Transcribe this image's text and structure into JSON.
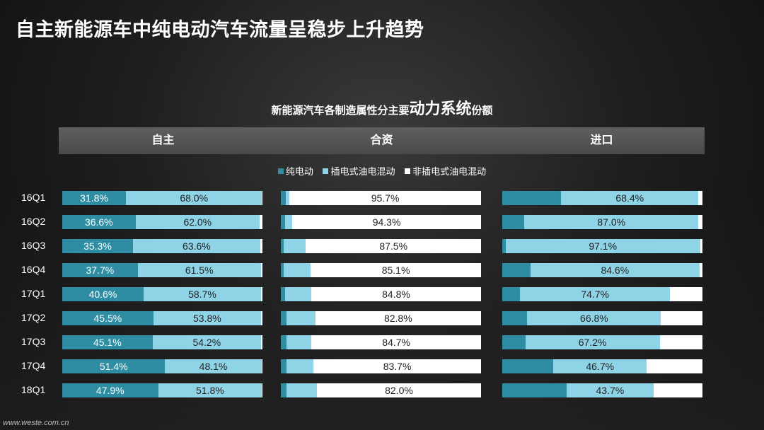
{
  "title": "自主新能源车中纯电动汽车流量呈稳步上升趋势",
  "subtitle_prefix": "新能源汽车各制造属性分主要",
  "subtitle_emph": "动力系统",
  "subtitle_suffix": "份额",
  "watermark": "www.weste.com.cn",
  "colors": {
    "bev": "#2f8da3",
    "phev": "#8fd3e6",
    "hev": "#ffffff",
    "header_bar": "#555555"
  },
  "chart_data": {
    "type": "bar",
    "stacked": true,
    "orientation": "horizontal",
    "categories": [
      "16Q1",
      "16Q2",
      "16Q3",
      "16Q4",
      "17Q1",
      "17Q2",
      "17Q3",
      "17Q4",
      "18Q1"
    ],
    "series_names": [
      "纯电动",
      "插电式油电混动",
      "非插电式油电混动"
    ],
    "groups": [
      {
        "name": "自主",
        "bev": [
          31.8,
          36.6,
          35.3,
          37.7,
          40.6,
          45.5,
          45.1,
          51.4,
          47.9
        ],
        "phev": [
          68.0,
          62.0,
          63.6,
          61.5,
          58.7,
          53.8,
          54.2,
          48.1,
          51.8
        ],
        "hev": [
          0.2,
          1.4,
          1.1,
          0.8,
          0.7,
          0.7,
          0.7,
          0.5,
          0.3
        ],
        "labeled": [
          "bev",
          "phev"
        ],
        "bev_labels": [
          "31.8%",
          "36.6%",
          "35.3%",
          "37.7%",
          "40.6%",
          "45.5%",
          "45.1%",
          "51.4%",
          "47.9%"
        ],
        "phev_labels": [
          "68.0%",
          "62.0%",
          "63.6%",
          "61.5%",
          "58.7%",
          "53.8%",
          "54.2%",
          "48.1%",
          "51.8%"
        ]
      },
      {
        "name": "合资",
        "bev": [
          2.5,
          2.0,
          1.5,
          1.5,
          2.0,
          3.0,
          3.0,
          3.0,
          3.0
        ],
        "phev": [
          1.8,
          3.7,
          11.0,
          13.4,
          13.2,
          14.2,
          12.3,
          13.3,
          15.0
        ],
        "hev": [
          95.7,
          94.3,
          87.5,
          85.1,
          84.8,
          82.8,
          84.7,
          83.7,
          82.0
        ],
        "labeled": [
          "hev"
        ],
        "hev_labels": [
          "95.7%",
          "94.3%",
          "87.5%",
          "85.1%",
          "84.8%",
          "82.8%",
          "84.7%",
          "83.7%",
          "82.0%"
        ]
      },
      {
        "name": "进口",
        "bev": [
          29.5,
          11.0,
          1.7,
          14.0,
          9.0,
          12.5,
          11.5,
          25.5,
          32.0
        ],
        "phev": [
          68.4,
          87.0,
          97.1,
          84.6,
          74.7,
          66.8,
          67.2,
          46.7,
          43.7
        ],
        "hev": [
          2.1,
          2.0,
          1.2,
          1.4,
          16.3,
          20.7,
          21.3,
          27.8,
          24.3
        ],
        "labeled": [
          "phev"
        ],
        "phev_labels": [
          "68.4%",
          "87.0%",
          "97.1%",
          "84.6%",
          "74.7%",
          "66.8%",
          "67.2%",
          "46.7%",
          "43.7%"
        ]
      }
    ]
  }
}
